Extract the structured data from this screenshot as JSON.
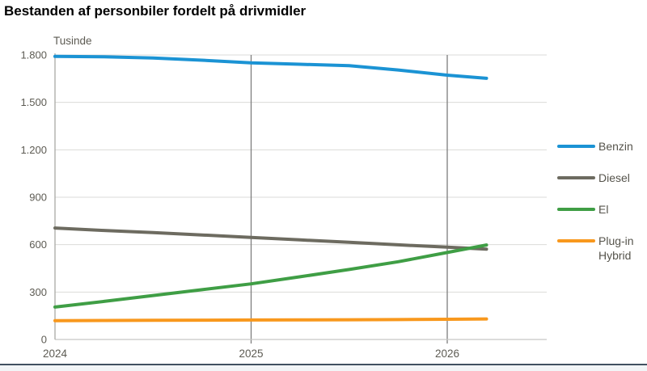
{
  "page": {
    "title": "Bestanden af personbiler fordelt på drivmidler"
  },
  "chart_data": {
    "type": "line",
    "title": "Bestanden af personbiler fordelt på drivmidler",
    "xlabel": "",
    "ylabel": "Tusinde",
    "ylim": [
      0,
      1800
    ],
    "xlim": [
      2024,
      2026.5
    ],
    "grid": {
      "horizontal": "light",
      "vertical_years": [
        2025,
        2026
      ]
    },
    "legend_position": "right",
    "ytick_values": [
      0,
      300,
      600,
      900,
      1200,
      1500,
      1800
    ],
    "ytick_labels": [
      "0",
      "300",
      "600",
      "900",
      "1.200",
      "1.500",
      "1.800"
    ],
    "xtick_values": [
      2024,
      2025,
      2026
    ],
    "xtick_labels": [
      "2024",
      "2025",
      "2026"
    ],
    "x": [
      2024.0,
      2024.25,
      2024.5,
      2024.75,
      2025.0,
      2025.25,
      2025.5,
      2025.75,
      2026.0,
      2026.2
    ],
    "series": [
      {
        "name": "Benzin",
        "color": "#1b93d4",
        "values": [
          1791,
          1788,
          1781,
          1767,
          1750,
          1741,
          1732,
          1705,
          1672,
          1652
        ]
      },
      {
        "name": "Diesel",
        "color": "#6d6b60",
        "values": [
          705,
          690,
          676,
          661,
          646,
          630,
          615,
          599,
          584,
          571
        ]
      },
      {
        "name": "El",
        "color": "#3f9e45",
        "values": [
          205,
          241,
          278,
          315,
          352,
          397,
          443,
          492,
          550,
          598
        ]
      },
      {
        "name": "Plug-in Hybrid",
        "color": "#f8981d",
        "values": [
          119,
          120,
          121,
          122,
          123,
          124,
          125,
          126,
          128,
          130
        ]
      }
    ],
    "colors": {
      "gridline_light": "#dbdbd8",
      "gridline_dark": "#7d7d7d",
      "x_axis": "#c8c8c5",
      "y_axis": "#a9a9a4",
      "tick_text": "#5d5b53",
      "legend_text": "#56544c",
      "footer_line": "#415161"
    }
  }
}
